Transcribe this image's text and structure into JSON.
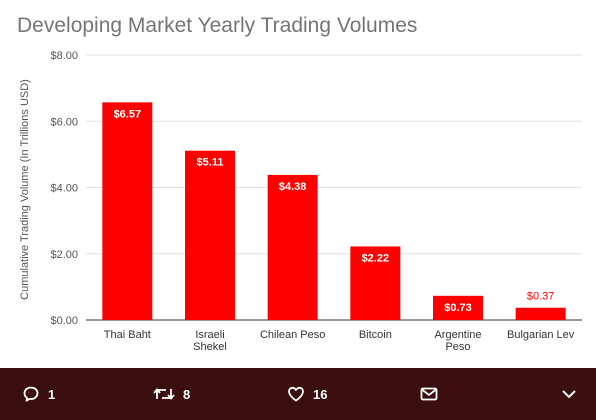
{
  "chart_data": {
    "type": "bar",
    "title": "Developing Market Yearly Trading Volumes",
    "ylabel": "Cumulative Trading Volume (In Trillions USD)",
    "xlabel": "",
    "categories": [
      "Thai Baht",
      "Israeli Shekel",
      "Chilean Peso",
      "Bitcoin",
      "Argentine Peso",
      "Bulgarian Lev"
    ],
    "values": [
      6.57,
      5.11,
      4.38,
      2.22,
      0.73,
      0.37
    ],
    "data_labels": [
      "$6.57",
      "$5.11",
      "$4.38",
      "$2.22",
      "$0.73",
      "$0.37"
    ],
    "y_ticks": [
      0,
      2,
      4,
      6,
      8
    ],
    "y_tick_labels": [
      "$0.00",
      "$2.00",
      "$4.00",
      "$6.00",
      "$8.00"
    ],
    "ylim": [
      0,
      8
    ],
    "grid": true,
    "bar_color": "#ff0000",
    "label_color_inside": "#ffffff",
    "label_color_outside": "#ff0000",
    "legend": "none"
  },
  "actions": {
    "reply": {
      "icon": "reply-icon",
      "count": "1"
    },
    "retweet": {
      "icon": "retweet-icon",
      "count": "8"
    },
    "like": {
      "icon": "heart-icon",
      "count": "16"
    },
    "message": {
      "icon": "envelope-icon"
    },
    "more": {
      "icon": "chevron-down-icon"
    }
  }
}
